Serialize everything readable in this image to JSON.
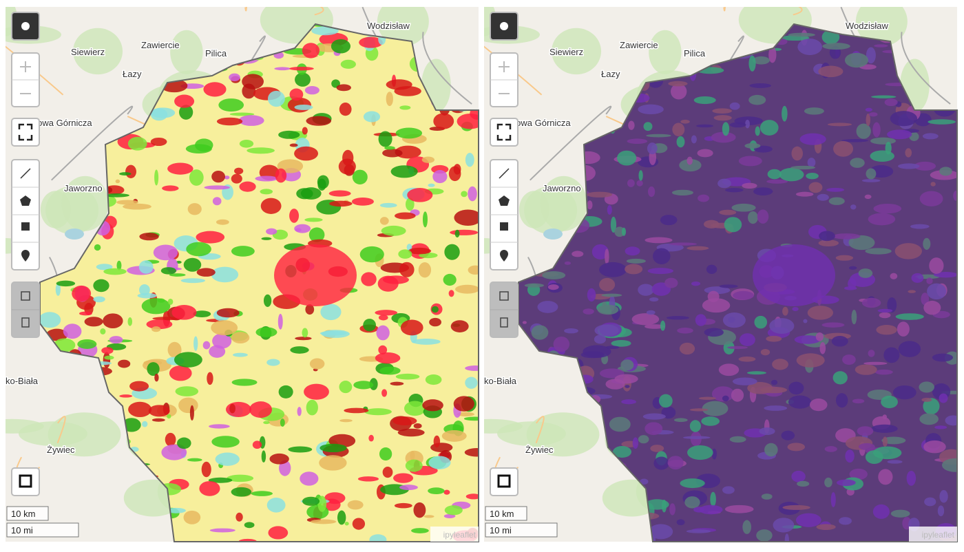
{
  "map": {
    "place_labels": [
      "Wodzisław",
      "Siewierz",
      "Zawiercie",
      "Pilica",
      "Łazy",
      "Dąbrowa Górnicza",
      "Jaworzno",
      "ko-Biała",
      "Żywiec"
    ],
    "scale": [
      "10 km",
      "10 mi"
    ],
    "attribution": "ipyleaflet"
  }
}
